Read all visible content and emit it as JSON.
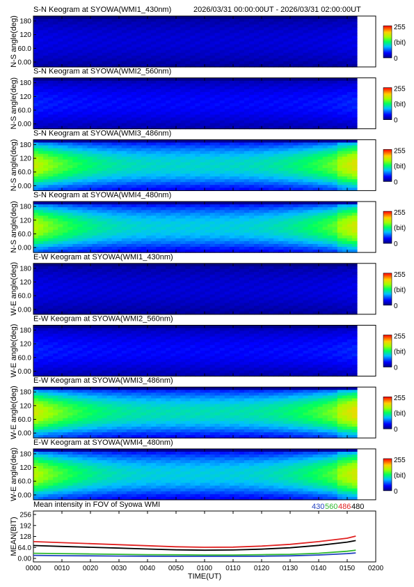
{
  "header": {
    "time_range": "2026/03/31 00:00:00UT - 2026/03/31 02:00:00UT"
  },
  "colorbar": {
    "max_label": "255",
    "unit_label": "(bit)",
    "min_label": "0"
  },
  "panel_ticks": [
    "180",
    "120",
    "60.0",
    "0.00"
  ],
  "panels": [
    {
      "title": "S-N Keogram at SYOWA(WMI1_430nm)",
      "ylabel": "N-S angle(deg)",
      "base": 0.1,
      "edge": 0.12
    },
    {
      "title": "S-N Keogram at SYOWA(WMI2_560nm)",
      "ylabel": "N-S angle(deg)",
      "base": 0.15,
      "edge": 0.18
    },
    {
      "title": "S-N Keogram at SYOWA(WMI3_486nm)",
      "ylabel": "N-S angle(deg)",
      "base": 0.4,
      "edge": 0.7
    },
    {
      "title": "S-N Keogram at SYOWA(WMI4_480nm)",
      "ylabel": "N-S angle(deg)",
      "base": 0.38,
      "edge": 0.68
    },
    {
      "title": "E-W Keogram at SYOWA(WMI1_430nm)",
      "ylabel": "W-E angle(deg)",
      "base": 0.1,
      "edge": 0.12
    },
    {
      "title": "E-W Keogram at SYOWA(WMI2_560nm)",
      "ylabel": "W-E angle(deg)",
      "base": 0.15,
      "edge": 0.18
    },
    {
      "title": "E-W Keogram at SYOWA(WMI3_486nm)",
      "ylabel": "W-E angle(deg)",
      "base": 0.42,
      "edge": 0.72
    },
    {
      "title": "E-W Keogram at SYOWA(WMI4_480nm)",
      "ylabel": "W-E angle(deg)",
      "base": 0.38,
      "edge": 0.68
    }
  ],
  "chart_data": {
    "type": "line",
    "title": "Mean intensity in FOV of Syowa WMI",
    "xlabel": "TIME(UT)",
    "ylabel": "MEAN(BIT)",
    "x_ticks": [
      "0000",
      "0010",
      "0020",
      "0030",
      "0040",
      "0050",
      "0100",
      "0110",
      "0120",
      "0130",
      "0140",
      "0150",
      "0200"
    ],
    "y_ticks": [
      "256",
      "192",
      "128",
      "64.0",
      "0.00"
    ],
    "ylim": [
      0,
      256
    ],
    "xlim_minutes": [
      0,
      120
    ],
    "x_minutes": [
      0,
      10,
      20,
      30,
      40,
      50,
      60,
      70,
      80,
      90,
      100,
      110,
      113
    ],
    "series": [
      {
        "name": "430",
        "color": "#1f3fbf",
        "values": [
          18,
          16,
          15,
          14,
          13,
          12,
          12,
          12,
          13,
          15,
          20,
          28,
          32
        ]
      },
      {
        "name": "560",
        "color": "#2db82d",
        "values": [
          30,
          28,
          26,
          24,
          22,
          21,
          20,
          20,
          22,
          24,
          30,
          42,
          48
        ]
      },
      {
        "name": "486",
        "color": "#e02020",
        "values": [
          98,
          92,
          86,
          80,
          74,
          68,
          65,
          66,
          72,
          82,
          98,
          118,
          130
        ]
      },
      {
        "name": "480",
        "color": "#000000",
        "values": [
          75,
          70,
          65,
          60,
          55,
          50,
          48,
          49,
          54,
          62,
          76,
          95,
          104
        ]
      }
    ]
  }
}
